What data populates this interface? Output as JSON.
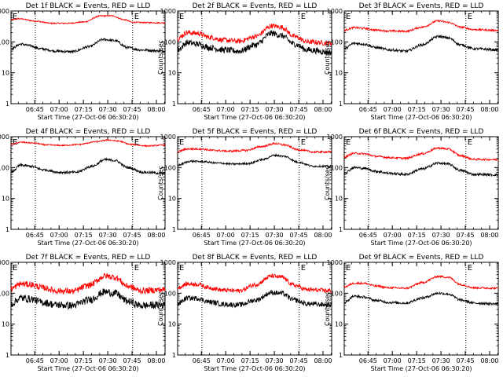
{
  "colors": {
    "events": "#000000",
    "lld": "#ff0000",
    "axis": "#000000",
    "background": "#ffffff"
  },
  "panel_common": {
    "ylabel": "Counts/sec",
    "xlabel": "Start Time (27-Oct-06 06:30:20)",
    "xtick_labels": [
      "06:45",
      "07:00",
      "07:15",
      "07:30",
      "07:45",
      "08:00"
    ],
    "ytick_labels": [
      "1",
      "10",
      "100",
      "1000"
    ],
    "marker_label": "E"
  },
  "chart_data": [
    {
      "type": "line",
      "title": "Det 1f BLACK = Events, RED = LLD",
      "yscale": "log",
      "ylim": [
        1,
        1000
      ],
      "x_unit": "minutes after 06:30:20",
      "xlim": [
        0,
        95
      ],
      "vlines": [
        15,
        75
      ],
      "series": [
        {
          "name": "LLD",
          "color": "#ff0000",
          "noise": 0.02,
          "knots": [
            [
              0,
              520
            ],
            [
              5,
              560
            ],
            [
              15,
              470
            ],
            [
              25,
              400
            ],
            [
              35,
              400
            ],
            [
              45,
              440
            ],
            [
              55,
              690
            ],
            [
              62,
              700
            ],
            [
              70,
              520
            ],
            [
              75,
              430
            ],
            [
              85,
              420
            ],
            [
              95,
              410
            ]
          ]
        },
        {
          "name": "Events",
          "color": "#000000",
          "noise": 0.04,
          "knots": [
            [
              0,
              60
            ],
            [
              6,
              85
            ],
            [
              12,
              75
            ],
            [
              18,
              60
            ],
            [
              28,
              50
            ],
            [
              38,
              48
            ],
            [
              48,
              70
            ],
            [
              57,
              120
            ],
            [
              64,
              110
            ],
            [
              72,
              65
            ],
            [
              80,
              55
            ],
            [
              95,
              50
            ]
          ]
        }
      ]
    },
    {
      "type": "line",
      "title": "Det 2f BLACK = Events, RED = LLD",
      "yscale": "log",
      "ylim": [
        1,
        1000
      ],
      "x_unit": "minutes after 06:30:20",
      "xlim": [
        0,
        95
      ],
      "vlines": [
        15,
        75
      ],
      "series": [
        {
          "name": "LLD",
          "color": "#ff0000",
          "noise": 0.08,
          "knots": [
            [
              0,
              130
            ],
            [
              6,
              200
            ],
            [
              12,
              190
            ],
            [
              20,
              140
            ],
            [
              28,
              115
            ],
            [
              38,
              105
            ],
            [
              48,
              150
            ],
            [
              58,
              330
            ],
            [
              64,
              300
            ],
            [
              72,
              150
            ],
            [
              80,
              100
            ],
            [
              95,
              90
            ]
          ]
        },
        {
          "name": "Events",
          "color": "#000000",
          "noise": 0.1,
          "knots": [
            [
              0,
              55
            ],
            [
              6,
              95
            ],
            [
              12,
              85
            ],
            [
              20,
              65
            ],
            [
              28,
              55
            ],
            [
              38,
              50
            ],
            [
              48,
              80
            ],
            [
              58,
              190
            ],
            [
              64,
              160
            ],
            [
              72,
              85
            ],
            [
              80,
              55
            ],
            [
              95,
              45
            ]
          ]
        }
      ]
    },
    {
      "type": "line",
      "title": "Det 3f BLACK = Events, RED = LLD",
      "yscale": "log",
      "ylim": [
        1,
        1000
      ],
      "x_unit": "minutes after 06:30:20",
      "xlim": [
        0,
        95
      ],
      "vlines": [
        15,
        75
      ],
      "series": [
        {
          "name": "LLD",
          "color": "#ff0000",
          "noise": 0.03,
          "knots": [
            [
              0,
              240
            ],
            [
              6,
              290
            ],
            [
              12,
              275
            ],
            [
              20,
              240
            ],
            [
              28,
              225
            ],
            [
              38,
              220
            ],
            [
              48,
              300
            ],
            [
              58,
              480
            ],
            [
              64,
              430
            ],
            [
              72,
              300
            ],
            [
              80,
              250
            ],
            [
              95,
              235
            ]
          ]
        },
        {
          "name": "Events",
          "color": "#000000",
          "noise": 0.04,
          "knots": [
            [
              0,
              60
            ],
            [
              6,
              90
            ],
            [
              12,
              85
            ],
            [
              20,
              65
            ],
            [
              28,
              55
            ],
            [
              38,
              50
            ],
            [
              48,
              80
            ],
            [
              58,
              150
            ],
            [
              64,
              135
            ],
            [
              72,
              80
            ],
            [
              80,
              60
            ],
            [
              95,
              55
            ]
          ]
        }
      ]
    },
    {
      "type": "line",
      "title": "Det 4f BLACK = Events, RED = LLD",
      "yscale": "log",
      "ylim": [
        1,
        1000
      ],
      "x_unit": "minutes after 06:30:20",
      "xlim": [
        0,
        95
      ],
      "vlines": [
        15,
        75
      ],
      "series": [
        {
          "name": "LLD",
          "color": "#ff0000",
          "noise": 0.02,
          "knots": [
            [
              0,
              560
            ],
            [
              6,
              660
            ],
            [
              14,
              620
            ],
            [
              22,
              540
            ],
            [
              32,
              520
            ],
            [
              42,
              560
            ],
            [
              52,
              680
            ],
            [
              60,
              780
            ],
            [
              66,
              720
            ],
            [
              74,
              560
            ],
            [
              84,
              500
            ],
            [
              95,
              540
            ]
          ]
        },
        {
          "name": "Events",
          "color": "#000000",
          "noise": 0.04,
          "knots": [
            [
              0,
              70
            ],
            [
              6,
              120
            ],
            [
              12,
              110
            ],
            [
              20,
              85
            ],
            [
              30,
              70
            ],
            [
              40,
              70
            ],
            [
              50,
              110
            ],
            [
              58,
              180
            ],
            [
              64,
              170
            ],
            [
              72,
              100
            ],
            [
              82,
              70
            ],
            [
              95,
              65
            ]
          ]
        }
      ]
    },
    {
      "type": "line",
      "title": "Det 5f BLACK = Events, RED = LLD",
      "yscale": "log",
      "ylim": [
        1,
        1000
      ],
      "x_unit": "minutes after 06:30:20",
      "xlim": [
        0,
        95
      ],
      "vlines": [
        15,
        75
      ],
      "series": [
        {
          "name": "LLD",
          "color": "#ff0000",
          "noise": 0.03,
          "knots": [
            [
              0,
              330
            ],
            [
              6,
              400
            ],
            [
              14,
              400
            ],
            [
              22,
              360
            ],
            [
              32,
              340
            ],
            [
              42,
              360
            ],
            [
              52,
              480
            ],
            [
              60,
              600
            ],
            [
              66,
              540
            ],
            [
              74,
              380
            ],
            [
              84,
              320
            ],
            [
              95,
              320
            ]
          ]
        },
        {
          "name": "Events",
          "color": "#000000",
          "noise": 0.03,
          "knots": [
            [
              0,
              120
            ],
            [
              8,
              160
            ],
            [
              16,
              155
            ],
            [
              24,
              140
            ],
            [
              34,
              130
            ],
            [
              44,
              135
            ],
            [
              52,
              180
            ],
            [
              60,
              250
            ],
            [
              66,
              230
            ],
            [
              74,
              150
            ],
            [
              84,
              110
            ],
            [
              95,
              110
            ]
          ]
        }
      ]
    },
    {
      "type": "line",
      "title": "Det 6f BLACK = Events, RED = LLD",
      "yscale": "log",
      "ylim": [
        1,
        1000
      ],
      "x_unit": "minutes after 06:30:20",
      "xlim": [
        0,
        95
      ],
      "vlines": [
        15,
        75
      ],
      "series": [
        {
          "name": "LLD",
          "color": "#ff0000",
          "noise": 0.03,
          "knots": [
            [
              0,
              220
            ],
            [
              6,
              290
            ],
            [
              12,
              280
            ],
            [
              20,
              230
            ],
            [
              28,
              210
            ],
            [
              38,
              200
            ],
            [
              48,
              280
            ],
            [
              58,
              430
            ],
            [
              64,
              400
            ],
            [
              72,
              240
            ],
            [
              80,
              185
            ],
            [
              95,
              180
            ]
          ]
        },
        {
          "name": "Events",
          "color": "#000000",
          "noise": 0.04,
          "knots": [
            [
              0,
              65
            ],
            [
              6,
              100
            ],
            [
              12,
              95
            ],
            [
              20,
              75
            ],
            [
              28,
              65
            ],
            [
              38,
              60
            ],
            [
              48,
              90
            ],
            [
              58,
              140
            ],
            [
              64,
              130
            ],
            [
              72,
              80
            ],
            [
              80,
              60
            ],
            [
              95,
              58
            ]
          ]
        }
      ]
    },
    {
      "type": "line",
      "title": "Det 7f BLACK = Events, RED = LLD",
      "yscale": "log",
      "ylim": [
        1,
        1000
      ],
      "x_unit": "minutes after 06:30:20",
      "xlim": [
        0,
        95
      ],
      "vlines": [
        15,
        75
      ],
      "series": [
        {
          "name": "LLD",
          "color": "#ff0000",
          "noise": 0.1,
          "knots": [
            [
              0,
              140
            ],
            [
              6,
              200
            ],
            [
              12,
              190
            ],
            [
              20,
              150
            ],
            [
              28,
              120
            ],
            [
              38,
              115
            ],
            [
              48,
              180
            ],
            [
              58,
              360
            ],
            [
              64,
              330
            ],
            [
              72,
              170
            ],
            [
              80,
              120
            ],
            [
              95,
              130
            ]
          ]
        },
        {
          "name": "Events",
          "color": "#000000",
          "noise": 0.12,
          "knots": [
            [
              0,
              45
            ],
            [
              6,
              70
            ],
            [
              12,
              65
            ],
            [
              20,
              50
            ],
            [
              28,
              42
            ],
            [
              38,
              40
            ],
            [
              48,
              60
            ],
            [
              58,
              110
            ],
            [
              64,
              100
            ],
            [
              72,
              55
            ],
            [
              80,
              40
            ],
            [
              95,
              42
            ]
          ]
        }
      ]
    },
    {
      "type": "line",
      "title": "Det 8f BLACK = Events, RED = LLD",
      "yscale": "log",
      "ylim": [
        1,
        1000
      ],
      "x_unit": "minutes after 06:30:20",
      "xlim": [
        0,
        95
      ],
      "vlines": [
        15,
        75
      ],
      "series": [
        {
          "name": "LLD",
          "color": "#ff0000",
          "noise": 0.07,
          "knots": [
            [
              0,
              150
            ],
            [
              6,
              200
            ],
            [
              12,
              195
            ],
            [
              20,
              150
            ],
            [
              28,
              125
            ],
            [
              38,
              120
            ],
            [
              48,
              190
            ],
            [
              58,
              360
            ],
            [
              64,
              330
            ],
            [
              72,
              180
            ],
            [
              80,
              130
            ],
            [
              95,
              120
            ]
          ]
        },
        {
          "name": "Events",
          "color": "#000000",
          "noise": 0.08,
          "knots": [
            [
              0,
              45
            ],
            [
              6,
              70
            ],
            [
              12,
              68
            ],
            [
              20,
              52
            ],
            [
              28,
              44
            ],
            [
              38,
              42
            ],
            [
              48,
              60
            ],
            [
              58,
              105
            ],
            [
              64,
              100
            ],
            [
              72,
              60
            ],
            [
              80,
              45
            ],
            [
              95,
              42
            ]
          ]
        }
      ]
    },
    {
      "type": "line",
      "title": "Det 9f BLACK = Events, RED = LLD",
      "yscale": "log",
      "ylim": [
        1,
        1000
      ],
      "x_unit": "minutes after 06:30:20",
      "xlim": [
        0,
        95
      ],
      "vlines": [
        15,
        75
      ],
      "series": [
        {
          "name": "LLD",
          "color": "#ff0000",
          "noise": 0.03,
          "knots": [
            [
              0,
              160
            ],
            [
              6,
              210
            ],
            [
              12,
              210
            ],
            [
              20,
              170
            ],
            [
              28,
              150
            ],
            [
              38,
              145
            ],
            [
              48,
              220
            ],
            [
              58,
              350
            ],
            [
              64,
              330
            ],
            [
              72,
              190
            ],
            [
              80,
              150
            ],
            [
              95,
              145
            ]
          ]
        },
        {
          "name": "Events",
          "color": "#000000",
          "noise": 0.04,
          "knots": [
            [
              0,
              50
            ],
            [
              6,
              80
            ],
            [
              12,
              75
            ],
            [
              20,
              58
            ],
            [
              28,
              50
            ],
            [
              38,
              48
            ],
            [
              48,
              70
            ],
            [
              58,
              100
            ],
            [
              64,
              95
            ],
            [
              72,
              60
            ],
            [
              80,
              48
            ],
            [
              95,
              45
            ]
          ]
        }
      ]
    }
  ]
}
